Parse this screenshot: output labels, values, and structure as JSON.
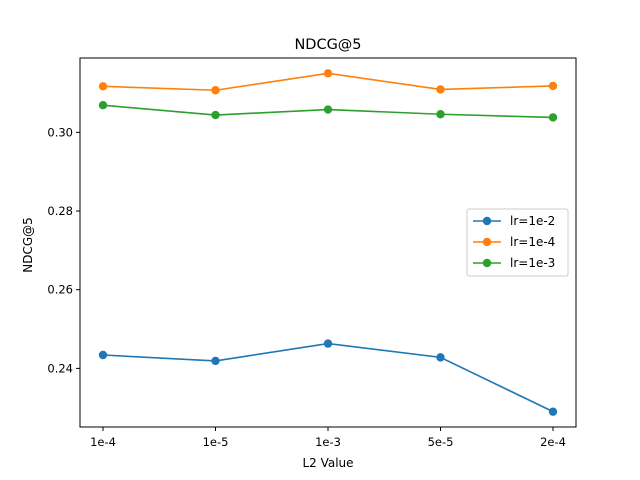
{
  "chart_data": {
    "type": "line",
    "title": "NDCG@5",
    "xlabel": "L2 Value",
    "ylabel": "NDCG@5",
    "categories": [
      "1e-4",
      "1e-5",
      "1e-3",
      "5e-5",
      "2e-4"
    ],
    "ylim": [
      0.2251,
      0.3189
    ],
    "yticks": [
      0.24,
      0.26,
      0.28,
      0.3
    ],
    "ytick_labels": [
      "0.24",
      "0.26",
      "0.28",
      "0.30"
    ],
    "grid": false,
    "legend_position": "center-right",
    "series": [
      {
        "name": "lr=1e-2",
        "color": "#1f77b4",
        "values": [
          0.2434,
          0.2419,
          0.2463,
          0.2428,
          0.229
        ]
      },
      {
        "name": "lr=1e-4",
        "color": "#ff7f0e",
        "values": [
          0.3117,
          0.3107,
          0.315,
          0.3109,
          0.3118
        ]
      },
      {
        "name": "lr=1e-3",
        "color": "#2ca02c",
        "values": [
          0.3069,
          0.3044,
          0.3058,
          0.3046,
          0.3038
        ]
      }
    ]
  }
}
